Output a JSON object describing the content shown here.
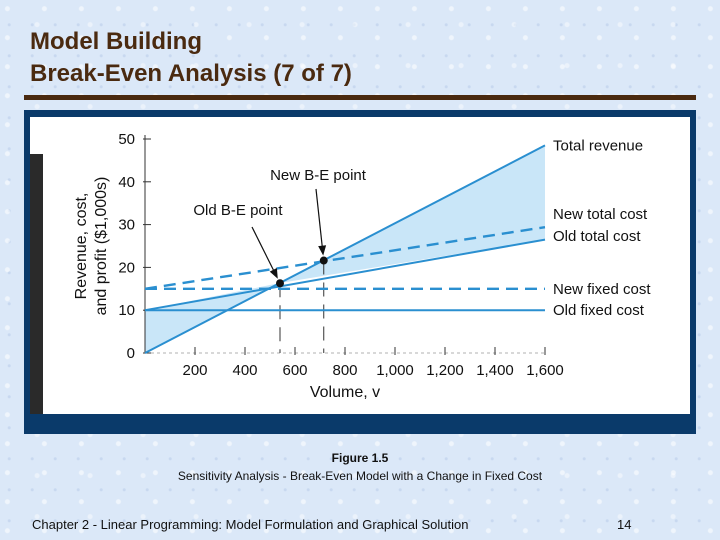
{
  "slide": {
    "title_line1": "Model Building",
    "title_line2": "Break-Even Analysis (7 of 7)",
    "figure_label": "Figure 1.5",
    "figure_caption": "Sensitivity Analysis - Break-Even Model with a Change in Fixed Cost",
    "footer_text": "Chapter 2 - Linear Programming:  Model Formulation and Graphical Solution",
    "page_number": "14"
  },
  "colors": {
    "title": "#4a2a10",
    "line": "#2a8fd0",
    "fill": "#c9e6f8",
    "frame": "#0a3a6a"
  },
  "chart_data": {
    "type": "line",
    "xlabel": "Volume, v",
    "ylabel_line1": "Revenue, cost,",
    "ylabel_line2": "and profit ($1,000s)",
    "x_ticks": [
      "200",
      "400",
      "600",
      "800",
      "1,000",
      "1,200",
      "1,400",
      "1,600"
    ],
    "y_ticks": [
      "0",
      "10",
      "20",
      "30",
      "40",
      "50"
    ],
    "xlim": [
      0,
      1600
    ],
    "ylim": [
      0,
      50
    ],
    "grid": false,
    "series": [
      {
        "name": "Total revenue",
        "style": "solid",
        "x": [
          0,
          1600
        ],
        "y": [
          0,
          48.5
        ]
      },
      {
        "name": "New total cost",
        "style": "dashed",
        "x": [
          0,
          1600
        ],
        "y": [
          15,
          29.4
        ]
      },
      {
        "name": "Old total cost",
        "style": "solid",
        "x": [
          0,
          1600
        ],
        "y": [
          10,
          26.5
        ]
      },
      {
        "name": "New fixed cost",
        "style": "dashed",
        "x": [
          0,
          1600
        ],
        "y": [
          15,
          15
        ]
      },
      {
        "name": "Old fixed cost",
        "style": "solid",
        "x": [
          0,
          1600
        ],
        "y": [
          10,
          10
        ]
      }
    ],
    "points": [
      {
        "label": "Old B-E point",
        "x": 540,
        "y": 16.3
      },
      {
        "label": "New B-E point",
        "x": 715,
        "y": 21.6
      }
    ]
  }
}
